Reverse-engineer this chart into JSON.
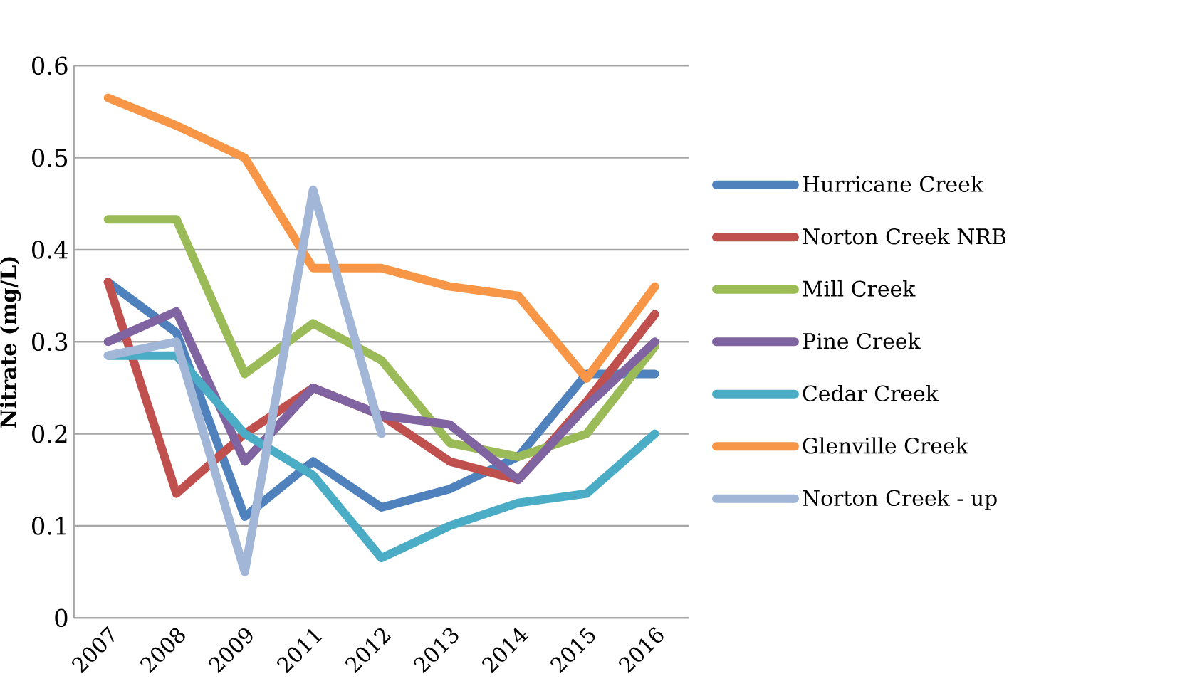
{
  "chart_data": {
    "type": "line",
    "ylabel": "Nitrate (mg/L)",
    "categories": [
      "2007",
      "2008",
      "2009",
      "2011",
      "2012",
      "2013",
      "2014",
      "2015",
      "2016"
    ],
    "ylim": [
      0,
      0.6
    ],
    "yticks": [
      0,
      0.1,
      0.2,
      0.3,
      0.4,
      0.5,
      0.6
    ],
    "grid": "y",
    "legend": "right",
    "marker": "none",
    "line_style": "solid",
    "series": [
      {
        "name": "Hurricane Creek",
        "color": "#4f81bd",
        "values": [
          0.365,
          0.31,
          0.11,
          0.17,
          0.12,
          0.14,
          0.175,
          0.265,
          0.265
        ]
      },
      {
        "name": "Norton Creek NRB",
        "color": "#c0504d",
        "values": [
          0.365,
          0.135,
          0.2,
          0.25,
          0.22,
          0.17,
          0.15,
          0.235,
          0.33
        ]
      },
      {
        "name": "Mill Creek",
        "color": "#9bbb59",
        "values": [
          0.433,
          0.433,
          0.265,
          0.32,
          0.28,
          0.19,
          0.175,
          0.2,
          0.295
        ]
      },
      {
        "name": "Pine Creek",
        "color": "#8064a2",
        "values": [
          0.3,
          0.333,
          0.17,
          0.25,
          0.22,
          0.21,
          0.15,
          0.23,
          0.3
        ]
      },
      {
        "name": "Cedar Creek",
        "color": "#4bacc6",
        "values": [
          0.285,
          0.285,
          0.2,
          0.155,
          0.065,
          0.1,
          0.125,
          0.135,
          0.2
        ]
      },
      {
        "name": "Glenville Creek",
        "color": "#f79646",
        "values": [
          0.565,
          0.535,
          0.5,
          0.38,
          0.38,
          0.36,
          0.35,
          0.26,
          0.36
        ]
      },
      {
        "name": "Norton Creek - up",
        "color": "#a2b6d8",
        "values": [
          0.285,
          0.3,
          0.05,
          0.465,
          0.2,
          null,
          null,
          null,
          null
        ]
      }
    ]
  }
}
